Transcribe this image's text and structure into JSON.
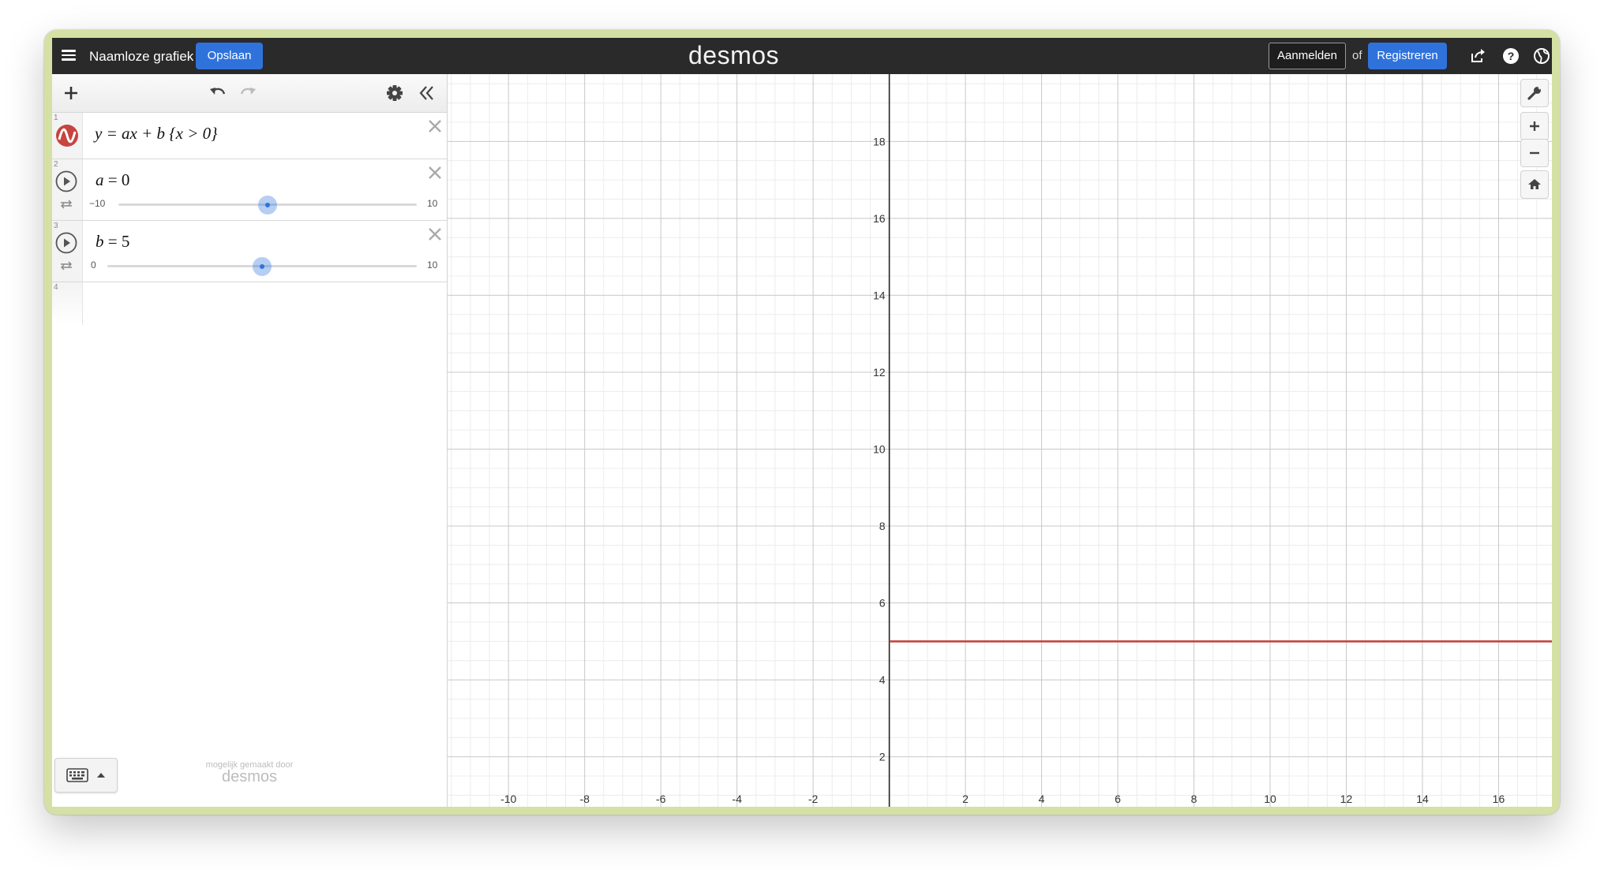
{
  "header": {
    "title": "Naamloze grafiek",
    "save_label": "Opslaan",
    "logo": "desmos",
    "login_label": "Aanmelden",
    "or_label": "of",
    "register_label": "Registreren",
    "icons": [
      "menu-icon",
      "share-icon",
      "help-icon",
      "language-globe-icon"
    ]
  },
  "toolbar": {
    "icons": [
      "add-icon",
      "undo-icon",
      "redo-icon",
      "settings-gear-icon",
      "collapse-panel-icon"
    ]
  },
  "expressions": [
    {
      "index": "1",
      "latex": "y = ax + b {x > 0}",
      "color": "#c74440"
    },
    {
      "index": "2",
      "variable": "a",
      "eq": "=",
      "value": "0",
      "min": "−10",
      "max": "10",
      "slider_value": 0,
      "min_num": -10,
      "max_num": 10
    },
    {
      "index": "3",
      "variable": "b",
      "eq": "=",
      "value": "5",
      "min": "0",
      "max": "10",
      "slider_value": 5,
      "min_num": 0,
      "max_num": 10
    },
    {
      "index": "4"
    }
  ],
  "footer": {
    "powered_text": "mogelijk gemaakt door",
    "powered_logo": "desmos"
  },
  "graph": {
    "x_range": [
      -11.6,
      17.4
    ],
    "y_range": [
      0.7,
      19.75
    ],
    "x_ticks": [
      "-10",
      "-8",
      "-6",
      "-4",
      "-2",
      "2",
      "4",
      "6",
      "8",
      "10",
      "12",
      "14",
      "16"
    ],
    "y_ticks": [
      "2",
      "4",
      "6",
      "8",
      "10",
      "12",
      "14",
      "16",
      "18"
    ],
    "line": {
      "y": 5,
      "x_from": 0,
      "color": "#c74440"
    },
    "tools": [
      "wrench-icon",
      "zoom-in-icon",
      "zoom-out-icon",
      "home-icon"
    ]
  }
}
